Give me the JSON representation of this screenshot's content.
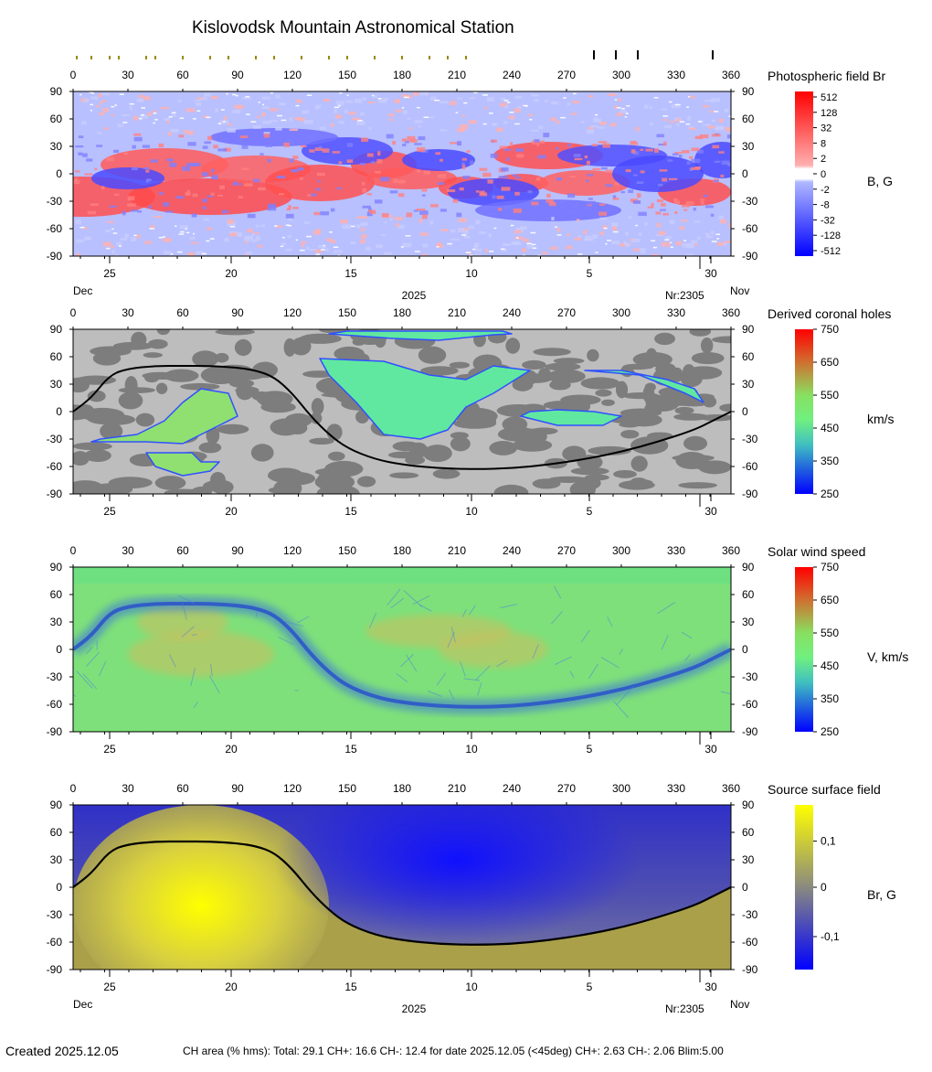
{
  "title": "Kislovodsk Mountain Astronomical Station",
  "colors": {
    "mag_pos": "#ff1010",
    "mag_neg": "#1010ff",
    "ch_light": "#bdbdbd",
    "ch_dark": "#7d7d7d",
    "speed_base": "#7ee07a",
    "ss_yellow": "#ffff00",
    "ss_blue": "#1010ff",
    "neutral_line": "#000000"
  },
  "markers": {
    "top_ticks_olive_longitudes": [
      2,
      10,
      20,
      25,
      40,
      45,
      60,
      75,
      85,
      100,
      110,
      125,
      140,
      150,
      165,
      180,
      195,
      205,
      215
    ],
    "top_ticks_black_longitudes": [
      285,
      297,
      309,
      350
    ]
  },
  "shared_axes": {
    "longitude_ticks": [
      "0",
      "30",
      "60",
      "90",
      "120",
      "150",
      "180",
      "210",
      "240",
      "270",
      "300",
      "330",
      "360"
    ],
    "latitude_ticks": [
      "90",
      "60",
      "30",
      "0",
      "-30",
      "-60",
      "-90"
    ],
    "day_ticks": [
      "25",
      "20",
      "15",
      "10",
      "5",
      "30"
    ],
    "month_left": "Dec",
    "month_right": "Nov",
    "year": "2025",
    "rotation": "Nr:2305"
  },
  "panels": [
    {
      "id": "photospheric",
      "title": "Photospheric field Br",
      "unit": "B, G",
      "scale": [
        "512",
        "128",
        "32",
        "8",
        "2",
        "0",
        "-2",
        "-8",
        "-32",
        "-128",
        "-512"
      ],
      "show_date_labels": true
    },
    {
      "id": "coronal",
      "title": "Derived coronal holes",
      "unit": "km/s",
      "scale": [
        "750",
        "650",
        "550",
        "450",
        "350",
        "250"
      ],
      "show_date_labels": false
    },
    {
      "id": "wind",
      "title": "Solar wind speed",
      "unit": "V, km/s",
      "scale": [
        "750",
        "650",
        "550",
        "450",
        "350",
        "250"
      ],
      "show_date_labels": false
    },
    {
      "id": "source",
      "title": "Source surface field",
      "unit": "Br, G",
      "scale": [
        "0,1",
        "0",
        "-0,1"
      ],
      "show_date_labels": true
    }
  ],
  "chart_data": {
    "type": "heatmap",
    "xlabel": "",
    "ylabel": "",
    "xlim": [
      0,
      360
    ],
    "ylim": [
      -90,
      90
    ],
    "neutral_line": {
      "longitude": [
        0,
        10,
        20,
        30,
        45,
        60,
        75,
        90,
        100,
        110,
        120,
        130,
        140,
        150,
        165,
        180,
        200,
        220,
        240,
        260,
        280,
        300,
        320,
        340,
        350,
        360
      ],
      "latitude": [
        0,
        15,
        40,
        47,
        50,
        50,
        50,
        48,
        45,
        38,
        20,
        -5,
        -25,
        -40,
        -52,
        -58,
        -62,
        -63,
        -62,
        -58,
        -52,
        -44,
        -33,
        -20,
        -10,
        0
      ]
    },
    "coronal_holes": [
      {
        "polarity": "positive",
        "lon": [
          10,
          40,
          60,
          70,
          80,
          90,
          85,
          70,
          60,
          50,
          35,
          15
        ],
        "lat": [
          -33,
          -33,
          -35,
          -25,
          -15,
          -5,
          20,
          25,
          10,
          -10,
          -25,
          -30
        ]
      },
      {
        "polarity": "positive",
        "lon": [
          40,
          65,
          70,
          80,
          75,
          60,
          45
        ],
        "lat": [
          -45,
          -45,
          -55,
          -55,
          -65,
          -70,
          -60
        ]
      },
      {
        "polarity": "negative",
        "lon": [
          135,
          170,
          195,
          215,
          230,
          250,
          230,
          215,
          205,
          190,
          170,
          155,
          140
        ],
        "lat": [
          58,
          55,
          40,
          35,
          50,
          45,
          20,
          5,
          -20,
          -30,
          -25,
          10,
          40
        ]
      },
      {
        "polarity": "negative",
        "lon": [
          140,
          175,
          200,
          220,
          230,
          240,
          235,
          210,
          180,
          150
        ],
        "lat": [
          85,
          80,
          78,
          82,
          84,
          85,
          88,
          88,
          88,
          88
        ]
      },
      {
        "polarity": "negative",
        "lon": [
          245,
          265,
          290,
          300,
          285,
          265,
          250
        ],
        "lat": [
          -5,
          -15,
          -15,
          -5,
          0,
          2,
          0
        ]
      },
      {
        "polarity": "negative",
        "lon": [
          280,
          310,
          335,
          345,
          340,
          325,
          300
        ],
        "lat": [
          45,
          40,
          20,
          10,
          25,
          35,
          45
        ]
      }
    ],
    "wind_speed_range_kms": [
      250,
      750
    ],
    "source_surface": {
      "positive_center": {
        "lon": 70,
        "lat": -20
      },
      "negative_center": {
        "lon": 210,
        "lat": 30
      },
      "range_G": [
        -0.15,
        0.15
      ]
    }
  },
  "footer": {
    "created": "Created  2025.12.05",
    "stats": "CH area (% hms): Total: 29.1 CH+: 16.6   CH-: 12.4 for date 2025.12.05 (<45deg) CH+: 2.63    CH-: 2.06 Blim:5.00"
  }
}
